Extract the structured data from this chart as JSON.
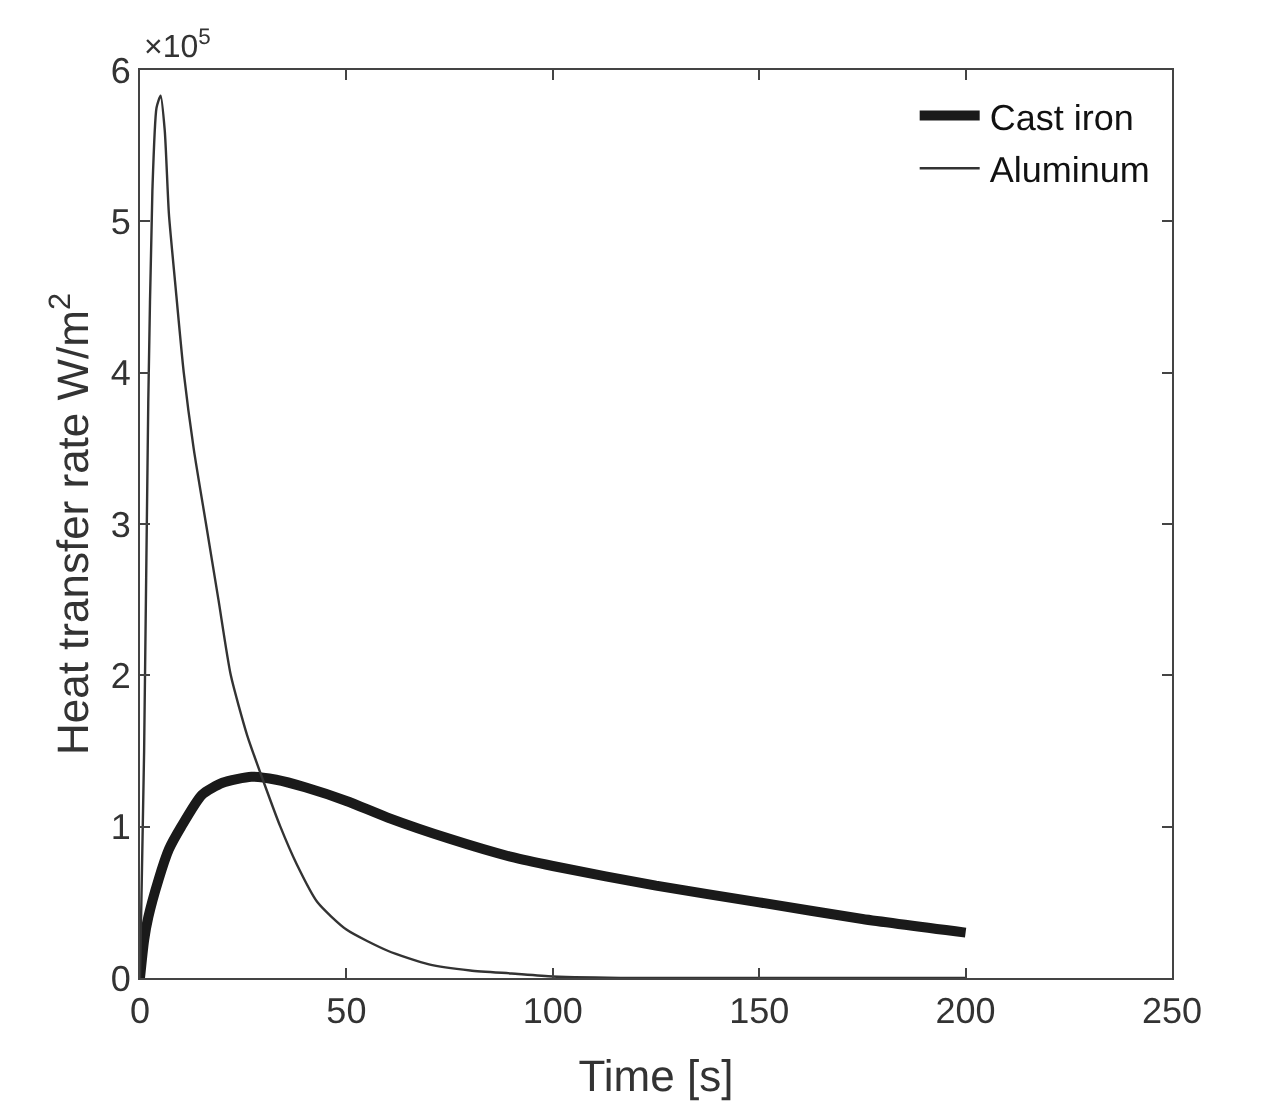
{
  "chart_data": {
    "type": "line",
    "xlabel": "Time [s]",
    "ylabel": "Heat transfer rate W/m$^{2}$",
    "annotations": [
      "×10$^{5}$"
    ],
    "xlim": [
      0,
      250
    ],
    "xticks": [
      0,
      50,
      100,
      150,
      200,
      250
    ],
    "ylim": [
      0,
      6
    ],
    "yticks": [
      0,
      1,
      2,
      3,
      4,
      5,
      6
    ],
    "grid": false,
    "legend": "top right",
    "marker": "none",
    "line_style": "solid",
    "series": [
      {
        "name": "Cast iron",
        "color": "#1a1a1a",
        "x": [
          0,
          1,
          2,
          4.5,
          7,
          10,
          15,
          20,
          27,
          33,
          40,
          50,
          60,
          75,
          90,
          100,
          125,
          150,
          175,
          200
        ],
        "values": [
          0,
          0.25,
          0.4,
          0.65,
          0.85,
          1.0,
          1.21,
          1.29,
          1.33,
          1.31,
          1.26,
          1.17,
          1.06,
          0.92,
          0.8,
          0.74,
          0.61,
          0.5,
          0.39,
          0.3
        ]
      },
      {
        "name": "Aluminum",
        "color": "#333333",
        "x": [
          0,
          1,
          2,
          3,
          4,
          5,
          6,
          7,
          8.5,
          10.6,
          13,
          16,
          19,
          22,
          26,
          29.5,
          34,
          38,
          43,
          50,
          60,
          70,
          80,
          90,
          100,
          120,
          150,
          200
        ],
        "values": [
          0,
          1.5,
          3.8,
          5.2,
          5.75,
          5.83,
          5.6,
          5.05,
          4.6,
          4.0,
          3.5,
          3.0,
          2.5,
          2.0,
          1.6,
          1.33,
          1.0,
          0.75,
          0.5,
          0.32,
          0.18,
          0.09,
          0.05,
          0.03,
          0.01,
          0,
          0,
          0
        ]
      }
    ]
  }
}
